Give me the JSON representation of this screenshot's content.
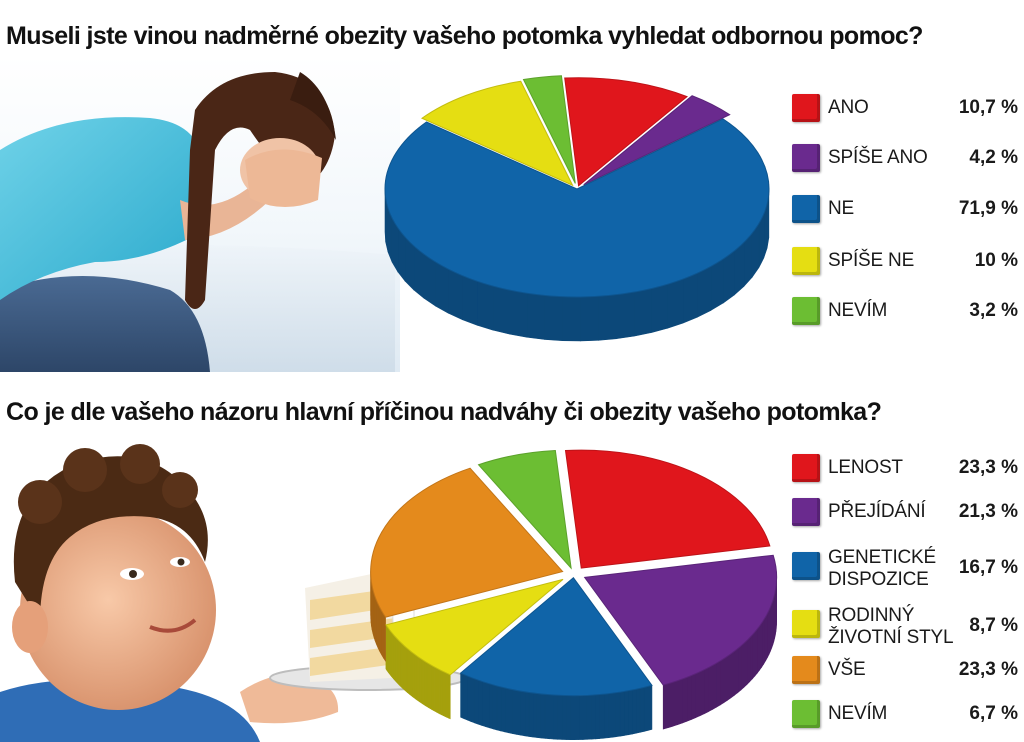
{
  "chart_data": [
    {
      "type": "pie",
      "title": "Museli jste vinou nadměrné obezity vašeho potomka vyhledat odbornou pomoc?",
      "slices": [
        {
          "label": "ANO",
          "value": 10.7,
          "display": "10,7 %",
          "color": "#e0161c"
        },
        {
          "label": "SPÍŠE ANO",
          "value": 4.2,
          "display": "4,2 %",
          "color": "#6a2a8e"
        },
        {
          "label": "NE",
          "value": 71.9,
          "display": "71,9 %",
          "color": "#1064a8"
        },
        {
          "label": "SPÍŠE NE",
          "value": 10,
          "display": "10 %",
          "color": "#e5de12"
        },
        {
          "label": "NEVÍM",
          "value": 3.2,
          "display": "3,2 %",
          "color": "#6cbe33"
        }
      ],
      "legend_position": "right"
    },
    {
      "type": "pie",
      "title": "Co je dle vašeho názoru hlavní příčinou nadváhy či obezity vašeho potomka?",
      "slices": [
        {
          "label": "LENOST",
          "value": 23.3,
          "display": "23,3 %",
          "color": "#e0161c"
        },
        {
          "label": "PŘEJÍDÁNÍ",
          "value": 21.3,
          "display": "21,3 %",
          "color": "#6a2a8e"
        },
        {
          "label": "GENETICKÉ\nDISPOZICE",
          "value": 16.7,
          "display": "16,7 %",
          "color": "#1064a8"
        },
        {
          "label": "RODINNÝ\nŽIVOTNÍ STYL",
          "value": 8.7,
          "display": "8,7 %",
          "color": "#e5de12"
        },
        {
          "label": "VŠE",
          "value": 23.3,
          "display": "23,3 %",
          "color": "#e48a1c"
        },
        {
          "label": "NEVÍM",
          "value": 6.7,
          "display": "6,7 %",
          "color": "#6cbe33"
        }
      ],
      "legend_position": "right"
    }
  ]
}
